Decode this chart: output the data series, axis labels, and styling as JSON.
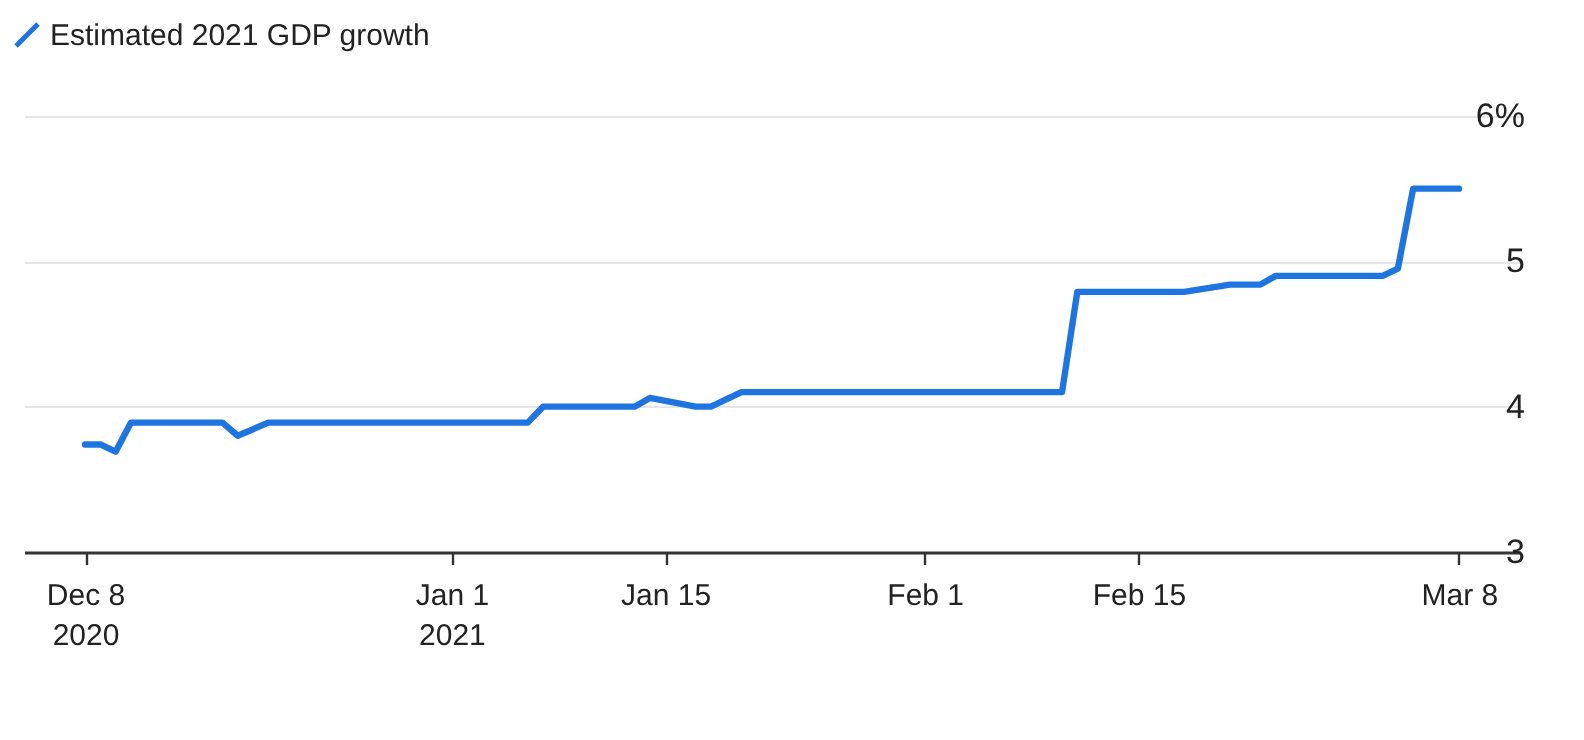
{
  "chart_data": {
    "type": "step",
    "x": [
      "2020-12-08",
      "2020-12-09",
      "2020-12-10",
      "2020-12-11",
      "2020-12-17",
      "2020-12-18",
      "2020-12-20",
      "2021-01-06",
      "2021-01-07",
      "2021-01-13",
      "2021-01-14",
      "2021-01-17",
      "2021-01-18",
      "2021-01-20",
      "2021-02-10",
      "2021-02-11",
      "2021-02-18",
      "2021-02-21",
      "2021-02-23",
      "2021-02-24",
      "2021-03-03",
      "2021-03-04",
      "2021-03-05",
      "2021-03-08"
    ],
    "series": [
      {
        "name": "Estimated 2021 GDP growth",
        "color": "#1f75e0",
        "values": [
          3.74,
          3.74,
          3.69,
          3.89,
          3.89,
          3.8,
          3.89,
          3.89,
          4.0,
          4.0,
          4.06,
          4.0,
          4.0,
          4.1,
          4.1,
          4.79,
          4.79,
          4.84,
          4.84,
          4.9,
          4.9,
          4.95,
          5.5,
          5.5
        ]
      }
    ],
    "xlim": [
      "2020-12-04",
      "2021-03-12"
    ],
    "xticks": [
      {
        "value": "2020-12-08",
        "label": "Dec 8\n2020"
      },
      {
        "value": "2021-01-01",
        "label": "Jan 1\n2021"
      },
      {
        "value": "2021-01-15",
        "label": "Jan 15"
      },
      {
        "value": "2021-02-01",
        "label": "Feb 1"
      },
      {
        "value": "2021-02-15",
        "label": "Feb 15"
      },
      {
        "value": "2021-03-08",
        "label": "Mar 8"
      }
    ],
    "ylim": [
      3,
      6
    ],
    "yticks": [
      3,
      4,
      5,
      {
        "value": 6,
        "label": "6%"
      }
    ],
    "grid": "y",
    "legend": "top left",
    "line_style": "solid",
    "marker": "none"
  }
}
